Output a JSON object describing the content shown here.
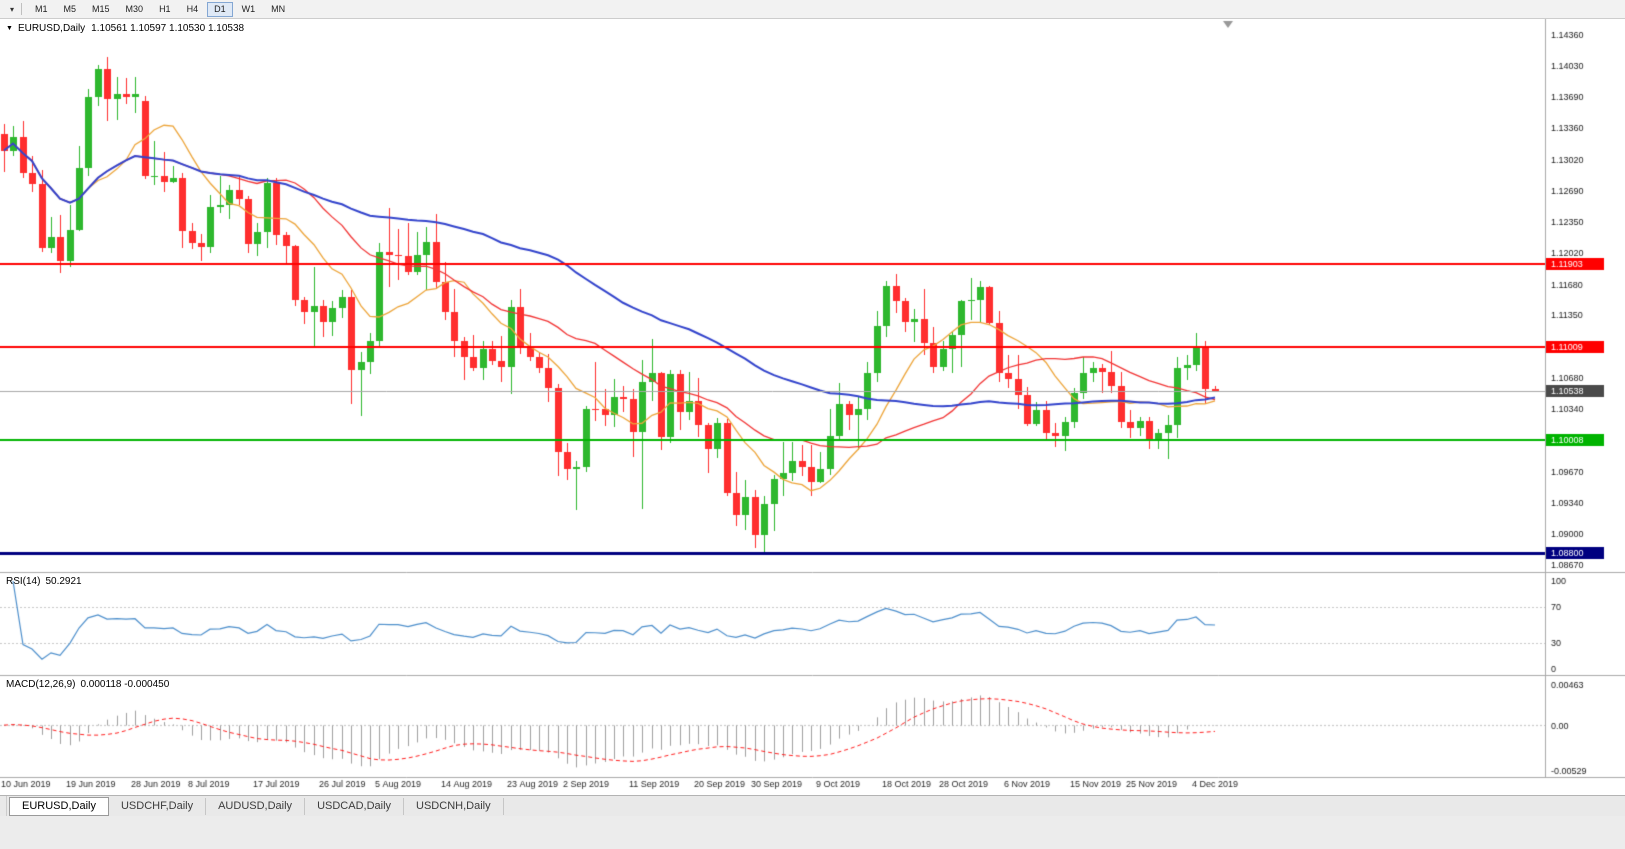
{
  "toolbar": {
    "timeframes": [
      "M1",
      "M5",
      "M15",
      "M30",
      "H1",
      "H4",
      "D1",
      "W1",
      "MN"
    ],
    "active_timeframe": "D1"
  },
  "chart_header": {
    "title": "EURUSD,Daily",
    "ohlc": "1.10561 1.10597 1.10530 1.10538"
  },
  "rsi_panel": {
    "label": "RSI(14)",
    "value": "50.2921"
  },
  "macd_panel": {
    "label": "MACD(12,26,9)",
    "values": "0.000118 -0.000450"
  },
  "tabs": [
    {
      "label": "EURUSD,Daily",
      "active": true
    },
    {
      "label": "USDCHF,Daily",
      "active": false
    },
    {
      "label": "AUDUSD,Daily",
      "active": false
    },
    {
      "label": "USDCAD,Daily",
      "active": false
    },
    {
      "label": "USDCNH,Daily",
      "active": false
    }
  ],
  "chart_data": {
    "type": "candlestick",
    "symbol": "EURUSD",
    "timeframe": "Daily",
    "current_bar": {
      "open": 1.10561,
      "high": 1.10597,
      "low": 1.1053,
      "close": 1.10538
    },
    "scale": {
      "max": 1.14532,
      "min": 1.08595
    },
    "colors": {
      "up": "#2eb82e",
      "down": "#ff2e2e",
      "background": "#ffffff"
    },
    "price_axis_ticks": [
      "1.14360",
      "1.14030",
      "1.13690",
      "1.13360",
      "1.13020",
      "1.12690",
      "1.12350",
      "1.12020",
      "1.11680",
      "1.11350",
      "1.10680",
      "1.10340",
      "1.09670",
      "1.09340",
      "1.09000",
      "1.08670"
    ],
    "horizontal_lines": [
      {
        "price": 1.11903,
        "label": "1.11903",
        "color": "#ff0000",
        "width": 2
      },
      {
        "price": 1.11009,
        "label": "1.11009",
        "color": "#ff0000",
        "width": 2
      },
      {
        "price": 1.10008,
        "label": "1.10008",
        "color": "#00b400",
        "width": 2
      },
      {
        "price": 1.088,
        "label": "1.08800",
        "color": "#000080",
        "width": 3
      }
    ],
    "bid_line": {
      "price": 1.10538,
      "label": "1.10538",
      "color": "#a8a8a8",
      "badge_color": "#4a4a4a"
    },
    "moving_averages": [
      {
        "period": 10,
        "color": "#eda53a",
        "width": 1.3
      },
      {
        "period": 24,
        "color": "#f23535",
        "width": 1.3
      },
      {
        "period": 52,
        "color": "#3344cc",
        "width": 2
      }
    ],
    "x_labels": [
      {
        "index": 0,
        "label": "10 Jun 2019"
      },
      {
        "index": 7,
        "label": "19 Jun 2019"
      },
      {
        "index": 14,
        "label": "28 Jun 2019"
      },
      {
        "index": 20,
        "label": "8 Jul 2019"
      },
      {
        "index": 27,
        "label": "17 Jul 2019"
      },
      {
        "index": 34,
        "label": "26 Jul 2019"
      },
      {
        "index": 40,
        "label": "5 Aug 2019"
      },
      {
        "index": 47,
        "label": "14 Aug 2019"
      },
      {
        "index": 54,
        "label": "23 Aug 2019"
      },
      {
        "index": 60,
        "label": "2 Sep 2019"
      },
      {
        "index": 67,
        "label": "11 Sep 2019"
      },
      {
        "index": 74,
        "label": "20 Sep 2019"
      },
      {
        "index": 80,
        "label": "30 Sep 2019"
      },
      {
        "index": 87,
        "label": "9 Oct 2019"
      },
      {
        "index": 94,
        "label": "18 Oct 2019"
      },
      {
        "index": 100,
        "label": "28 Oct 2019"
      },
      {
        "index": 107,
        "label": "6 Nov 2019"
      },
      {
        "index": 114,
        "label": "15 Nov 2019"
      },
      {
        "index": 120,
        "label": "25 Nov 2019"
      },
      {
        "index": 127,
        "label": "4 Dec 2019"
      }
    ],
    "sub_indicators": {
      "rsi": {
        "period": 14,
        "color": "#4d8fcc",
        "levels": [
          100,
          70,
          30,
          0
        ]
      },
      "macd": {
        "fast": 12,
        "slow": 26,
        "signal": 9,
        "hist_color": "#9f9f9f",
        "signal_color": "#ff2020",
        "scale_max": 0.00463,
        "scale_min": -0.00529,
        "axis_labels": [
          "0.00463",
          "0.00",
          "-0.00529"
        ]
      }
    },
    "candles": [
      [
        1.133,
        1.134,
        1.1289,
        1.1312
      ],
      [
        1.1312,
        1.1338,
        1.1306,
        1.1327
      ],
      [
        1.1327,
        1.1344,
        1.1283,
        1.1288
      ],
      [
        1.1288,
        1.1306,
        1.1268,
        1.1276
      ],
      [
        1.1276,
        1.1291,
        1.1203,
        1.1207
      ],
      [
        1.1207,
        1.1241,
        1.1202,
        1.1219
      ],
      [
        1.1219,
        1.1243,
        1.1181,
        1.1193
      ],
      [
        1.1193,
        1.1254,
        1.1187,
        1.1227
      ],
      [
        1.1227,
        1.1317,
        1.1226,
        1.1293
      ],
      [
        1.1293,
        1.1378,
        1.1285,
        1.1369
      ],
      [
        1.1369,
        1.1404,
        1.136,
        1.1399
      ],
      [
        1.1399,
        1.1412,
        1.1344,
        1.1367
      ],
      [
        1.1367,
        1.1391,
        1.1345,
        1.1373
      ],
      [
        1.1373,
        1.139,
        1.1362,
        1.1369
      ],
      [
        1.1369,
        1.1391,
        1.1352,
        1.1373
      ],
      [
        1.1365,
        1.137,
        1.1281,
        1.1285
      ],
      [
        1.1285,
        1.1322,
        1.1275,
        1.1285
      ],
      [
        1.1285,
        1.131,
        1.1268,
        1.1278
      ],
      [
        1.1278,
        1.1295,
        1.1277,
        1.1283
      ],
      [
        1.1283,
        1.1288,
        1.1207,
        1.1226
      ],
      [
        1.1226,
        1.1234,
        1.1206,
        1.1213
      ],
      [
        1.1213,
        1.1222,
        1.1193,
        1.1208
      ],
      [
        1.1208,
        1.1264,
        1.1202,
        1.1251
      ],
      [
        1.1251,
        1.1285,
        1.1245,
        1.1254
      ],
      [
        1.1254,
        1.1275,
        1.1239,
        1.127
      ],
      [
        1.127,
        1.1284,
        1.1254,
        1.126
      ],
      [
        1.126,
        1.1263,
        1.1202,
        1.1212
      ],
      [
        1.1212,
        1.1234,
        1.1199,
        1.1225
      ],
      [
        1.1225,
        1.1282,
        1.1207,
        1.1277
      ],
      [
        1.1277,
        1.1283,
        1.1211,
        1.1221
      ],
      [
        1.1221,
        1.1225,
        1.1189,
        1.1209
      ],
      [
        1.1209,
        1.1211,
        1.1145,
        1.1151
      ],
      [
        1.1151,
        1.1155,
        1.1126,
        1.1139
      ],
      [
        1.1139,
        1.1187,
        1.1101,
        1.1145
      ],
      [
        1.1145,
        1.1151,
        1.1112,
        1.1128
      ],
      [
        1.1128,
        1.115,
        1.1113,
        1.1143
      ],
      [
        1.1143,
        1.1162,
        1.1132,
        1.1155
      ],
      [
        1.1155,
        1.1162,
        1.104,
        1.1076
      ],
      [
        1.1076,
        1.1096,
        1.1027,
        1.1085
      ],
      [
        1.1085,
        1.1116,
        1.1072,
        1.1108
      ],
      [
        1.1108,
        1.1213,
        1.1101,
        1.1203
      ],
      [
        1.1203,
        1.125,
        1.1166,
        1.12
      ],
      [
        1.12,
        1.1228,
        1.1173,
        1.1199
      ],
      [
        1.1199,
        1.1234,
        1.1178,
        1.1182
      ],
      [
        1.1182,
        1.1224,
        1.1178,
        1.12
      ],
      [
        1.12,
        1.123,
        1.1162,
        1.1214
      ],
      [
        1.1214,
        1.1244,
        1.1163,
        1.1171
      ],
      [
        1.1171,
        1.1192,
        1.113,
        1.1139
      ],
      [
        1.1139,
        1.1163,
        1.109,
        1.1108
      ],
      [
        1.1108,
        1.1112,
        1.1066,
        1.109
      ],
      [
        1.109,
        1.1114,
        1.1075,
        1.1078
      ],
      [
        1.1078,
        1.1107,
        1.1066,
        1.1099
      ],
      [
        1.1099,
        1.1107,
        1.1082,
        1.1086
      ],
      [
        1.1086,
        1.1113,
        1.1063,
        1.108
      ],
      [
        1.108,
        1.1152,
        1.1051,
        1.1144
      ],
      [
        1.1144,
        1.1163,
        1.1094,
        1.1101
      ],
      [
        1.1101,
        1.1116,
        1.1086,
        1.109
      ],
      [
        1.109,
        1.1095,
        1.1073,
        1.1078
      ],
      [
        1.1078,
        1.1094,
        1.1042,
        1.1057
      ],
      [
        1.1057,
        1.1061,
        1.0963,
        1.0988
      ],
      [
        1.0988,
        1.0998,
        1.0958,
        1.097
      ],
      [
        1.097,
        1.0979,
        1.0926,
        1.0972
      ],
      [
        1.0972,
        1.1038,
        1.0967,
        1.1035
      ],
      [
        1.1035,
        1.1085,
        1.1022,
        1.1034
      ],
      [
        1.1034,
        1.1056,
        1.1016,
        1.1028
      ],
      [
        1.1028,
        1.1067,
        1.1015,
        1.1047
      ],
      [
        1.1047,
        1.1059,
        1.1031,
        1.1045
      ],
      [
        1.1045,
        1.1056,
        1.0983,
        1.101
      ],
      [
        1.101,
        1.1087,
        1.0927,
        1.1063
      ],
      [
        1.1063,
        1.111,
        1.1043,
        1.1073
      ],
      [
        1.1073,
        1.1074,
        1.0991,
        1.1004
      ],
      [
        1.1004,
        1.1076,
        1.0998,
        1.1072
      ],
      [
        1.1072,
        1.1076,
        1.1012,
        1.1031
      ],
      [
        1.1031,
        1.1074,
        1.1023,
        1.1043
      ],
      [
        1.1043,
        1.1068,
        1.1004,
        1.1017
      ],
      [
        1.1017,
        1.102,
        1.0966,
        1.0992
      ],
      [
        1.0992,
        1.1025,
        1.0982,
        1.102
      ],
      [
        1.102,
        1.1024,
        1.0941,
        1.0944
      ],
      [
        1.0944,
        1.0967,
        1.0909,
        1.0921
      ],
      [
        1.0921,
        1.0958,
        1.0905,
        1.094
      ],
      [
        1.094,
        1.0948,
        1.0885,
        1.0899
      ],
      [
        1.0899,
        1.0941,
        1.0879,
        1.0932
      ],
      [
        1.0932,
        1.0964,
        1.0903,
        1.0959
      ],
      [
        1.0959,
        1.0999,
        1.0941,
        1.0966
      ],
      [
        1.0966,
        1.0999,
        1.0957,
        1.0979
      ],
      [
        1.0979,
        1.0996,
        1.0963,
        1.0972
      ],
      [
        1.0972,
        1.0996,
        1.0941,
        1.0956
      ],
      [
        1.0956,
        1.0988,
        1.0955,
        1.097
      ],
      [
        1.097,
        1.1034,
        1.0964,
        1.1006
      ],
      [
        1.1006,
        1.1062,
        1.1002,
        1.104
      ],
      [
        1.104,
        1.1043,
        1.1012,
        1.1028
      ],
      [
        1.1028,
        1.1047,
        1.0991,
        1.1034
      ],
      [
        1.1034,
        1.1085,
        1.1023,
        1.1073
      ],
      [
        1.1073,
        1.114,
        1.1064,
        1.1124
      ],
      [
        1.1124,
        1.1172,
        1.1112,
        1.1167
      ],
      [
        1.1167,
        1.1179,
        1.1138,
        1.115
      ],
      [
        1.115,
        1.1154,
        1.1117,
        1.1128
      ],
      [
        1.1128,
        1.1142,
        1.1106,
        1.1131
      ],
      [
        1.1131,
        1.1163,
        1.1092,
        1.1105
      ],
      [
        1.1105,
        1.1123,
        1.1073,
        1.108
      ],
      [
        1.108,
        1.1107,
        1.1075,
        1.1099
      ],
      [
        1.1099,
        1.1118,
        1.1073,
        1.1114
      ],
      [
        1.1114,
        1.1152,
        1.108,
        1.115
      ],
      [
        1.115,
        1.1175,
        1.113,
        1.1152
      ],
      [
        1.1152,
        1.1172,
        1.1128,
        1.1166
      ],
      [
        1.1166,
        1.1167,
        1.1125,
        1.1127
      ],
      [
        1.1127,
        1.114,
        1.1063,
        1.1073
      ],
      [
        1.1073,
        1.1093,
        1.1057,
        1.1067
      ],
      [
        1.1067,
        1.1092,
        1.1035,
        1.105
      ],
      [
        1.105,
        1.1058,
        1.1016,
        1.1018
      ],
      [
        1.1018,
        1.1042,
        1.1016,
        1.1033
      ],
      [
        1.1033,
        1.1043,
        1.1002,
        1.1009
      ],
      [
        1.1009,
        1.102,
        1.0994,
        1.1006
      ],
      [
        1.1006,
        1.1026,
        1.0989,
        1.1021
      ],
      [
        1.1021,
        1.1057,
        1.1014,
        1.1052
      ],
      [
        1.1052,
        1.109,
        1.1045,
        1.1073
      ],
      [
        1.1073,
        1.1085,
        1.1064,
        1.1078
      ],
      [
        1.1078,
        1.1083,
        1.1052,
        1.1074
      ],
      [
        1.1074,
        1.1097,
        1.1052,
        1.1059
      ],
      [
        1.1059,
        1.1074,
        1.1014,
        1.1021
      ],
      [
        1.1021,
        1.1033,
        1.1003,
        1.1014
      ],
      [
        1.1014,
        1.1026,
        1.1005,
        1.1022
      ],
      [
        1.1022,
        1.1026,
        1.0992,
        1.1001
      ],
      [
        1.1001,
        1.1013,
        1.0992,
        1.1009
      ],
      [
        1.1009,
        1.1028,
        1.0981,
        1.1017
      ],
      [
        1.1017,
        1.109,
        1.1003,
        1.1078
      ],
      [
        1.1078,
        1.1093,
        1.1066,
        1.1082
      ],
      [
        1.1082,
        1.1116,
        1.1075,
        1.11
      ],
      [
        1.11,
        1.1108,
        1.104,
        1.1056
      ],
      [
        1.10561,
        1.10597,
        1.1053,
        1.10538
      ]
    ]
  }
}
